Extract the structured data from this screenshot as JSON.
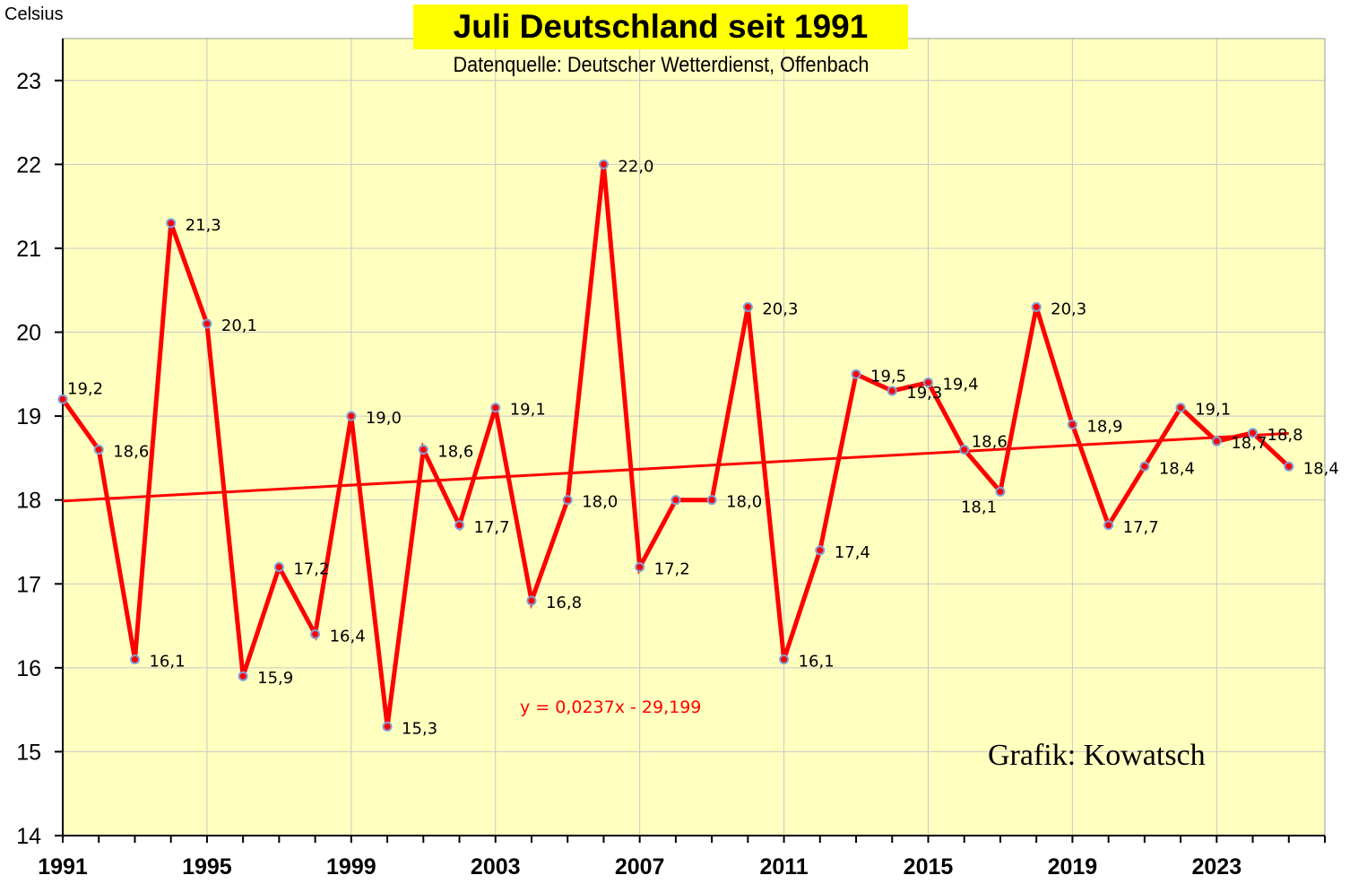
{
  "chart_data": {
    "type": "line",
    "title": "Juli Deutschland seit 1991",
    "subtitle": "Datenquelle: Deutscher Wetterdienst, Offenbach",
    "ylabel": "Celsius",
    "credit": "Grafik: Kowatsch",
    "trendline_label": "y = 0,0237x - 29,199",
    "trendline": {
      "slope": 0.0237,
      "intercept": -29.199
    },
    "xlim": [
      1991,
      2026
    ],
    "ylim": [
      14,
      23.5
    ],
    "x_ticks": [
      1991,
      1995,
      1999,
      2003,
      2007,
      2011,
      2015,
      2019,
      2023
    ],
    "y_ticks": [
      14,
      15,
      16,
      17,
      18,
      19,
      20,
      21,
      22,
      23
    ],
    "grid": true,
    "colors": {
      "plot_background": "#ffffc0",
      "series": "#ff0000",
      "marker_fill": "#ff0000",
      "marker_edge": "#7f9fd8",
      "title_background": "#ffff00"
    },
    "series": [
      {
        "x": [
          1991,
          1992,
          1993,
          1994,
          1995,
          1996,
          1997,
          1998,
          1999,
          2000,
          2001,
          2002,
          2003,
          2004,
          2005,
          2006,
          2007,
          2008,
          2009,
          2010,
          2011,
          2012,
          2013,
          2014,
          2015,
          2016,
          2017,
          2018,
          2019,
          2020,
          2021,
          2022,
          2023,
          2024,
          2025
        ],
        "values": [
          19.2,
          18.6,
          16.1,
          21.3,
          20.1,
          15.9,
          17.2,
          16.4,
          19.0,
          15.3,
          18.6,
          17.7,
          19.1,
          16.8,
          18.0,
          22.0,
          17.2,
          18.0,
          18.0,
          20.3,
          16.1,
          17.4,
          19.5,
          19.3,
          19.4,
          18.6,
          18.1,
          20.3,
          18.9,
          17.7,
          18.4,
          19.1,
          18.7,
          18.8,
          18.4
        ],
        "labels": [
          "19,2",
          "18,6",
          "16,1",
          "21,3",
          "20,1",
          "15,9",
          "17,2",
          "16,4",
          "19,0",
          "15,3",
          "18,6",
          "17,7",
          "19,1",
          "16,8",
          "18,0",
          "22,0",
          "17,2",
          "",
          "18,0",
          "20,3",
          "16,1",
          "17,4",
          "19,5",
          "19,3",
          "19,4",
          "18,6",
          "18,1",
          "20,3",
          "18,9",
          "17,7",
          "18,4",
          "19,1",
          "18,7",
          "18,8",
          "18,4"
        ]
      }
    ]
  }
}
